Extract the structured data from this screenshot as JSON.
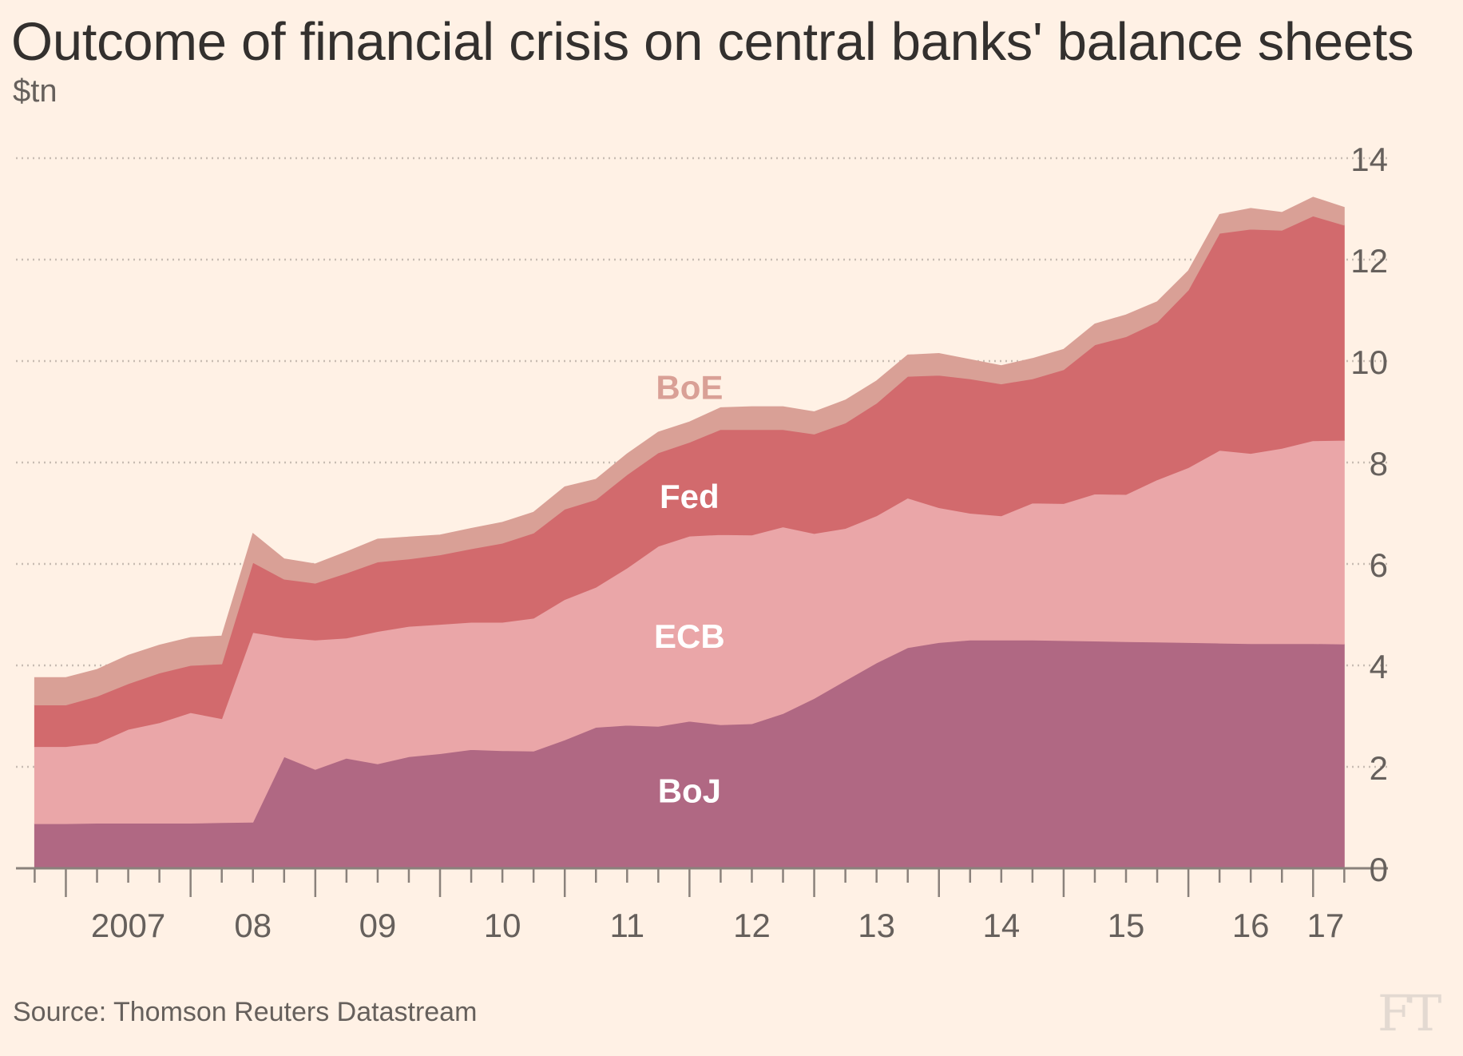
{
  "title": "Outcome of financial crisis on central banks' balance sheets",
  "subtitle": "$tn",
  "source": "Source: Thomson Reuters Datastream",
  "logo": "FT",
  "chart_data": {
    "type": "area",
    "stacked": true,
    "title": "Outcome of financial crisis on central banks' balance sheets",
    "ylabel": "$tn",
    "xlabel": "",
    "ylim": [
      0,
      14
    ],
    "xlim": [
      2006.6,
      2017.6
    ],
    "yticks": [
      0,
      2,
      4,
      6,
      8,
      10,
      12,
      14
    ],
    "xtick_labels": [
      {
        "label": "2007",
        "x": 2007.5
      },
      {
        "label": "08",
        "x": 2008.5
      },
      {
        "label": "09",
        "x": 2009.5
      },
      {
        "label": "10",
        "x": 2010.5
      },
      {
        "label": "11",
        "x": 2011.5
      },
      {
        "label": "12",
        "x": 2012.5
      },
      {
        "label": "13",
        "x": 2013.5
      },
      {
        "label": "14",
        "x": 2014.5
      },
      {
        "label": "15",
        "x": 2015.5
      },
      {
        "label": "16",
        "x": 2016.5
      },
      {
        "label": "17",
        "x": 2017.1
      }
    ],
    "grid": "horizontal-dotted",
    "x": [
      2006.75,
      2007.0,
      2007.25,
      2007.5,
      2007.75,
      2008.0,
      2008.25,
      2008.5,
      2008.75,
      2009.0,
      2009.25,
      2009.5,
      2009.75,
      2010.0,
      2010.25,
      2010.5,
      2010.75,
      2011.0,
      2011.25,
      2011.5,
      2011.75,
      2012.0,
      2012.25,
      2012.5,
      2012.75,
      2013.0,
      2013.25,
      2013.5,
      2013.75,
      2014.0,
      2014.25,
      2014.5,
      2014.75,
      2015.0,
      2015.25,
      2015.5,
      2015.75,
      2016.0,
      2016.25,
      2016.5,
      2016.75,
      2017.0,
      2017.25
    ],
    "series": [
      {
        "name": "BoJ",
        "color": "#b06883",
        "values": [
          0.88,
          0.88,
          0.89,
          0.89,
          0.89,
          0.89,
          0.9,
          0.91,
          2.2,
          1.95,
          2.17,
          2.06,
          2.2,
          2.26,
          2.34,
          2.32,
          2.31,
          2.53,
          2.78,
          2.82,
          2.8,
          2.9,
          2.83,
          2.85,
          3.05,
          3.35,
          3.7,
          4.05,
          4.35,
          4.45,
          4.5,
          4.5,
          4.5,
          4.49,
          4.48,
          4.47,
          4.46,
          4.45,
          4.44,
          4.43,
          4.43,
          4.43,
          4.42
        ]
      },
      {
        "name": "ECB",
        "color": "#eaa6a8",
        "values": [
          1.52,
          1.52,
          1.58,
          1.85,
          1.98,
          2.18,
          2.05,
          3.74,
          2.35,
          2.55,
          2.37,
          2.61,
          2.57,
          2.55,
          2.51,
          2.53,
          2.62,
          2.77,
          2.76,
          3.1,
          3.55,
          3.65,
          3.75,
          3.72,
          3.68,
          3.25,
          3.0,
          2.9,
          2.95,
          2.66,
          2.5,
          2.45,
          2.7,
          2.7,
          2.9,
          2.9,
          3.2,
          3.45,
          3.8,
          3.75,
          3.85,
          4.0,
          4.02
        ]
      },
      {
        "name": "Fed",
        "color": "#d26a6d",
        "values": [
          0.82,
          0.82,
          0.92,
          0.9,
          0.98,
          0.93,
          1.08,
          1.38,
          1.15,
          1.12,
          1.28,
          1.37,
          1.33,
          1.37,
          1.45,
          1.56,
          1.68,
          1.78,
          1.73,
          1.84,
          1.84,
          1.85,
          2.07,
          2.08,
          1.92,
          1.96,
          2.08,
          2.22,
          2.4,
          2.61,
          2.65,
          2.6,
          2.45,
          2.64,
          2.94,
          3.11,
          3.11,
          3.5,
          4.28,
          4.42,
          4.3,
          4.43,
          4.24
        ]
      },
      {
        "name": "BoE",
        "color": "#d9a096",
        "values": [
          0.54,
          0.54,
          0.53,
          0.56,
          0.55,
          0.55,
          0.55,
          0.57,
          0.4,
          0.38,
          0.42,
          0.45,
          0.43,
          0.39,
          0.4,
          0.41,
          0.41,
          0.44,
          0.4,
          0.41,
          0.41,
          0.4,
          0.43,
          0.45,
          0.45,
          0.44,
          0.45,
          0.44,
          0.42,
          0.43,
          0.38,
          0.36,
          0.4,
          0.4,
          0.41,
          0.43,
          0.4,
          0.38,
          0.37,
          0.41,
          0.35,
          0.37,
          0.35
        ]
      }
    ],
    "series_labels": [
      {
        "name": "BoE",
        "x": 2012.0,
        "y": 9.25,
        "color": "#d9a096"
      },
      {
        "name": "Fed",
        "x": 2012.0,
        "y": 7.1,
        "color": "#ffffff"
      },
      {
        "name": "ECB",
        "x": 2012.0,
        "y": 4.35,
        "color": "#ffffff"
      },
      {
        "name": "BoJ",
        "x": 2012.0,
        "y": 1.3,
        "color": "#ffffff"
      }
    ]
  }
}
